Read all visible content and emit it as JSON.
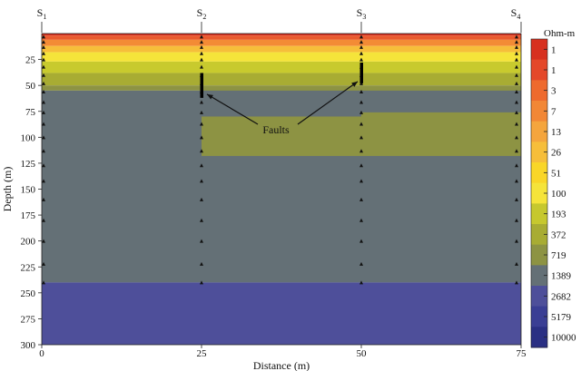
{
  "chart_data": {
    "type": "heatmap",
    "xlabel": "Distance (m)",
    "ylabel": "Depth (m)",
    "xlim": [
      0,
      75
    ],
    "ylim": [
      0,
      300
    ],
    "x_ticks": [
      0,
      25,
      50,
      75
    ],
    "y_ticks": [
      25,
      50,
      75,
      100,
      125,
      150,
      175,
      200,
      225,
      250,
      275,
      300
    ],
    "stations": [
      {
        "label": "S1",
        "x": 0
      },
      {
        "label": "S2",
        "x": 25
      },
      {
        "label": "S3",
        "x": 50
      },
      {
        "label": "S4",
        "x": 75
      }
    ],
    "colorbar": {
      "title": "Ohm-m",
      "levels": [
        {
          "label": "1",
          "color": "#D7301F"
        },
        {
          "label": "1",
          "color": "#E4482A"
        },
        {
          "label": "3",
          "color": "#EE6A2E"
        },
        {
          "label": "7",
          "color": "#F28736"
        },
        {
          "label": "13",
          "color": "#F4A53D"
        },
        {
          "label": "26",
          "color": "#F6BE3A"
        },
        {
          "label": "51",
          "color": "#F9D628"
        },
        {
          "label": "100",
          "color": "#F5E43A"
        },
        {
          "label": "193",
          "color": "#C6C82E"
        },
        {
          "label": "372",
          "color": "#A8AC33"
        },
        {
          "label": "719",
          "color": "#8D9343"
        },
        {
          "label": "1389",
          "color": "#647076"
        },
        {
          "label": "2682",
          "color": "#4E4F9A"
        },
        {
          "label": "5179",
          "color": "#3A3E94"
        },
        {
          "label": "10000",
          "color": "#2A2F83"
        }
      ]
    },
    "layers": [
      {
        "name": "surface",
        "x0": 0,
        "x1": 75,
        "d0": 0,
        "d1": 2,
        "color": "#D7301F"
      },
      {
        "name": "band-2",
        "x0": 0,
        "x1": 75,
        "d0": 2,
        "d1": 6,
        "color": "#E95A2E"
      },
      {
        "name": "band-3",
        "x0": 0,
        "x1": 75,
        "d0": 6,
        "d1": 12,
        "color": "#F38B35"
      },
      {
        "name": "band-4",
        "x0": 0,
        "x1": 75,
        "d0": 12,
        "d1": 18,
        "color": "#F6BE3A"
      },
      {
        "name": "band-5",
        "x0": 0,
        "x1": 75,
        "d0": 18,
        "d1": 27,
        "color": "#F5E43A"
      },
      {
        "name": "band-6",
        "x0": 0,
        "x1": 75,
        "d0": 27,
        "d1": 38,
        "color": "#C8CA2E"
      },
      {
        "name": "band-7",
        "x0": 0,
        "x1": 75,
        "d0": 38,
        "d1": 50,
        "color": "#A8AC33"
      },
      {
        "name": "band-8-left",
        "x0": 0,
        "x1": 25,
        "d0": 50,
        "d1": 55,
        "color": "#8D9343"
      },
      {
        "name": "band-8-mid",
        "x0": 25,
        "x1": 50,
        "d0": 50,
        "d1": 65,
        "color": "#8D9343"
      },
      {
        "name": "band-8-right",
        "x0": 50,
        "x1": 75,
        "d0": 50,
        "d1": 58,
        "color": "#8D9343"
      },
      {
        "name": "host-1389",
        "x0": 0,
        "x1": 75,
        "d0": 55,
        "d1": 240,
        "color": "#647076"
      },
      {
        "name": "lens-mid",
        "x0": 25,
        "x1": 50,
        "d0": 80,
        "d1": 118,
        "color": "#8D9343"
      },
      {
        "name": "lens-right",
        "x0": 50,
        "x1": 75,
        "d0": 76,
        "d1": 118,
        "color": "#8D9343"
      },
      {
        "name": "basement",
        "x0": 0,
        "x1": 75,
        "d0": 240,
        "d1": 300,
        "color": "#4E4F9A"
      }
    ],
    "measurement_depths": [
      3,
      8,
      13,
      19,
      25,
      32,
      40,
      48,
      56,
      66,
      76,
      87,
      100,
      113,
      127,
      142,
      160,
      180,
      200,
      222,
      240
    ],
    "annotations": [
      {
        "text": "Faults"
      }
    ],
    "faults": [
      {
        "x": 25,
        "d0": 38,
        "d1": 62
      },
      {
        "x": 50,
        "d0": 28,
        "d1": 48
      }
    ]
  }
}
